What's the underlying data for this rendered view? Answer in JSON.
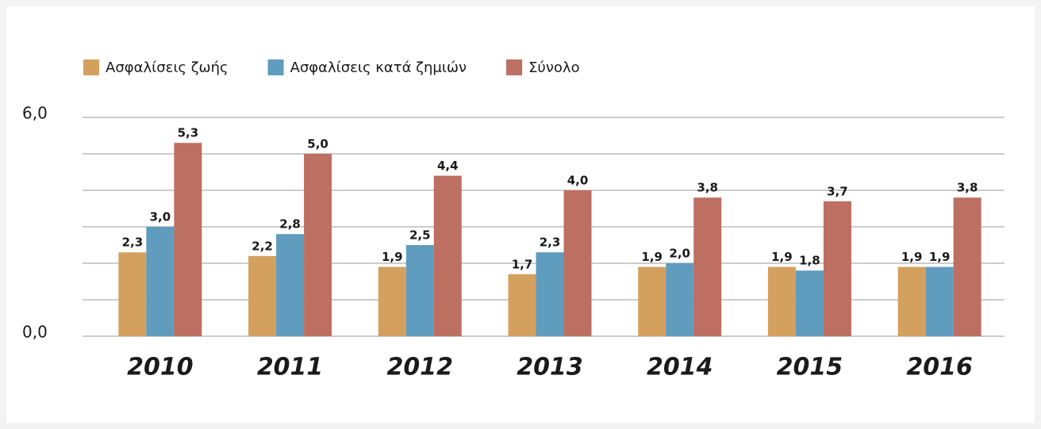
{
  "chart_data": {
    "type": "bar",
    "categories": [
      "2010",
      "2011",
      "2012",
      "2013",
      "2014",
      "2015",
      "2016"
    ],
    "series": [
      {
        "name": "Ασφαλίσεις ζωής",
        "color": "#d4a05e",
        "values": [
          2.3,
          2.2,
          1.9,
          1.7,
          1.9,
          1.9,
          1.9
        ],
        "value_labels": [
          "2,3",
          "2,2",
          "1,9",
          "1,7",
          "1,9",
          "1,9",
          "1,9"
        ]
      },
      {
        "name": "Ασφαλίσεις κατά ζημιών",
        "color": "#5f9cbd",
        "values": [
          3.0,
          2.8,
          2.5,
          2.3,
          2.0,
          1.8,
          1.9
        ],
        "value_labels": [
          "3,0",
          "2,8",
          "2,5",
          "2,3",
          "2,0",
          "1,8",
          "1,9"
        ]
      },
      {
        "name": "Σύνολο",
        "color": "#bd6f62",
        "values": [
          5.3,
          5.0,
          4.4,
          4.0,
          3.8,
          3.7,
          3.8
        ],
        "value_labels": [
          "5,3",
          "5,0",
          "4,4",
          "4,0",
          "3,8",
          "3,7",
          "3,8"
        ]
      }
    ],
    "ylim": [
      0,
      6
    ],
    "yticks": [
      {
        "value": 0,
        "label": "0,0"
      },
      {
        "value": 6,
        "label": "6,0"
      }
    ],
    "minor_yticks": [
      1,
      2,
      3,
      4,
      5
    ],
    "grid": true,
    "legend": "top-left"
  }
}
